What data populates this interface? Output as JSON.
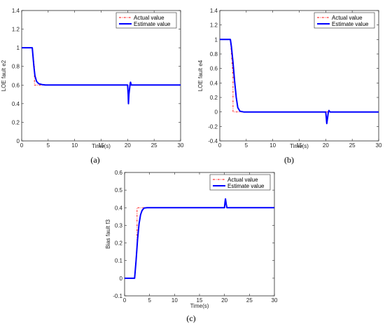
{
  "chart_data": [
    {
      "type": "line",
      "panel_label": "(a)",
      "xlabel": "Time(s)",
      "ylabel": "LOE fault e2",
      "xlim": [
        0,
        30
      ],
      "ylim": [
        0,
        1.4
      ],
      "xticks": [
        0,
        5,
        10,
        15,
        20,
        25,
        30
      ],
      "yticks": [
        0,
        0.2,
        0.4,
        0.6,
        0.8,
        1,
        1.2,
        1.4
      ],
      "ytick_labels": [
        "0",
        "0.2",
        "0.4",
        "0.6",
        "0.8",
        "1",
        "1.2",
        "1.4"
      ],
      "legend_position": "top-right",
      "grid": false,
      "series": [
        {
          "name": "Actual value",
          "color": "#ff0000",
          "style": "dash-dot",
          "x": [
            0,
            2,
            2,
            2.4,
            2.4,
            30
          ],
          "y": [
            1,
            1,
            1,
            0.8,
            0.6,
            0.6
          ]
        },
        {
          "name": "Estimate value",
          "color": "#0000ff",
          "style": "solid",
          "x": [
            0,
            2,
            2.1,
            2.3,
            2.5,
            2.8,
            3.2,
            3.8,
            4.5,
            5.5,
            20,
            20.1,
            20.15,
            20.25,
            20.4,
            20.5,
            20.55,
            20.7,
            30
          ],
          "y": [
            1,
            1,
            0.93,
            0.8,
            0.7,
            0.64,
            0.615,
            0.605,
            0.6,
            0.6,
            0.6,
            0.5,
            0.4,
            0.5,
            0.58,
            0.62,
            0.63,
            0.6,
            0.6
          ]
        }
      ]
    },
    {
      "type": "line",
      "panel_label": "(b)",
      "xlabel": "Time(s)",
      "ylabel": "LOE fault e4",
      "xlim": [
        0,
        30
      ],
      "ylim": [
        -0.4,
        1.4
      ],
      "xticks": [
        0,
        5,
        10,
        15,
        20,
        25,
        30
      ],
      "yticks": [
        -0.4,
        -0.2,
        0,
        0.2,
        0.4,
        0.6,
        0.8,
        1,
        1.2,
        1.4
      ],
      "ytick_labels": [
        "-0.4",
        "-0.2",
        "0",
        "0.2",
        "0.4",
        "0.6",
        "0.8",
        "1",
        "1.2",
        "1.4"
      ],
      "legend_position": "top-right",
      "grid": false,
      "series": [
        {
          "name": "Actual value",
          "color": "#ff0000",
          "style": "dash-dot",
          "x": [
            0,
            2,
            2,
            2.5,
            2.5,
            30
          ],
          "y": [
            1,
            1,
            1,
            0.5,
            0,
            0
          ]
        },
        {
          "name": "Estimate value",
          "color": "#0000ff",
          "style": "solid",
          "x": [
            0,
            2,
            2.2,
            2.5,
            2.8,
            3.1,
            3.4,
            3.8,
            4.5,
            20,
            20.1,
            20.2,
            20.35,
            20.5,
            20.6,
            20.8,
            30
          ],
          "y": [
            1,
            1,
            0.9,
            0.68,
            0.42,
            0.2,
            0.06,
            0.01,
            0,
            0,
            -0.08,
            -0.16,
            -0.08,
            0,
            0.02,
            0,
            0
          ]
        }
      ]
    },
    {
      "type": "line",
      "panel_label": "(c)",
      "xlabel": "Time(s)",
      "ylabel": "Bias fault f3",
      "xlim": [
        0,
        30
      ],
      "ylim": [
        -0.1,
        0.6
      ],
      "xticks": [
        0,
        5,
        10,
        15,
        20,
        25,
        30
      ],
      "yticks": [
        -0.1,
        0,
        0.1,
        0.2,
        0.3,
        0.4,
        0.5,
        0.6
      ],
      "ytick_labels": [
        "-0.1",
        "0",
        "0.1",
        "0.2",
        "0.3",
        "0.4",
        "0.5",
        "0.6"
      ],
      "legend_position": "top-right",
      "grid": false,
      "series": [
        {
          "name": "Actual value",
          "color": "#ff0000",
          "style": "dash-dot",
          "x": [
            0,
            2,
            2,
            2.5,
            2.5,
            30
          ],
          "y": [
            0,
            0,
            0,
            0.2,
            0.4,
            0.4
          ]
        },
        {
          "name": "Estimate value",
          "color": "#0000ff",
          "style": "solid",
          "x": [
            0,
            2,
            2.3,
            2.6,
            2.9,
            3.2,
            3.5,
            3.9,
            4.5,
            20,
            20.1,
            20.2,
            20.35,
            20.5,
            20.7,
            30
          ],
          "y": [
            0,
            0,
            0.1,
            0.22,
            0.31,
            0.36,
            0.385,
            0.398,
            0.4,
            0.4,
            0.43,
            0.45,
            0.42,
            0.4,
            0.4,
            0.4
          ]
        }
      ]
    }
  ]
}
